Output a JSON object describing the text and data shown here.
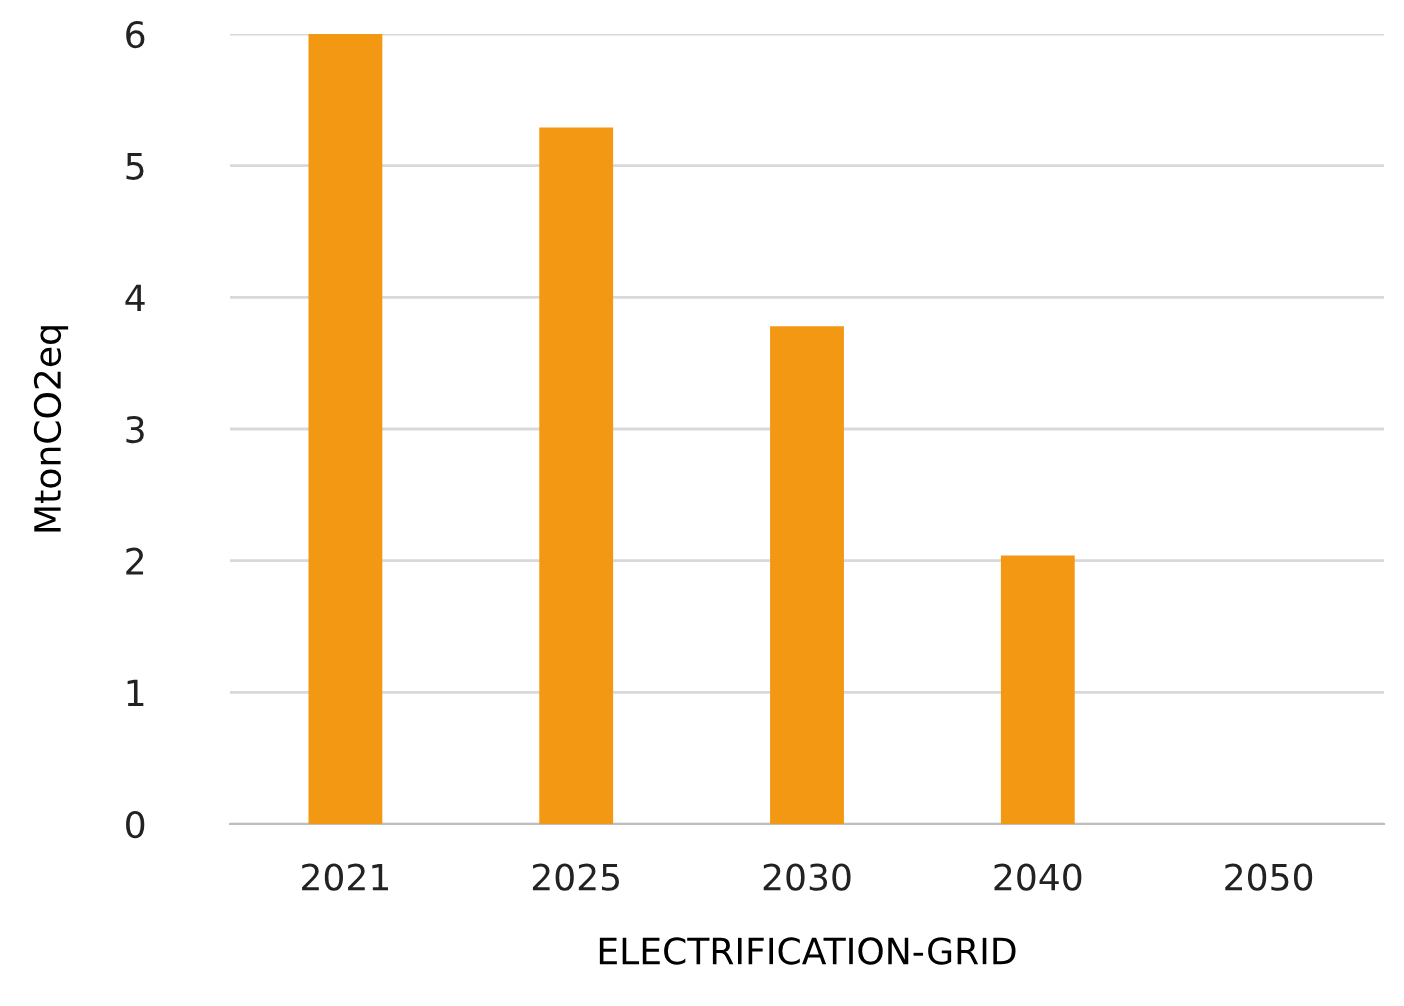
{
  "chart_data": {
    "type": "bar",
    "xlabel": "ELECTRIFICATION-GRID",
    "ylabel": "MtonCO2eq",
    "categories": [
      "2021",
      "2025",
      "2030",
      "2040",
      "2050"
    ],
    "values": [
      6,
      5.29,
      3.78,
      2.04,
      0
    ],
    "color": "#f39813",
    "ylim": [
      0,
      6
    ],
    "yticks": [
      0,
      1,
      2,
      3,
      4,
      5,
      6
    ],
    "grid": "y"
  }
}
